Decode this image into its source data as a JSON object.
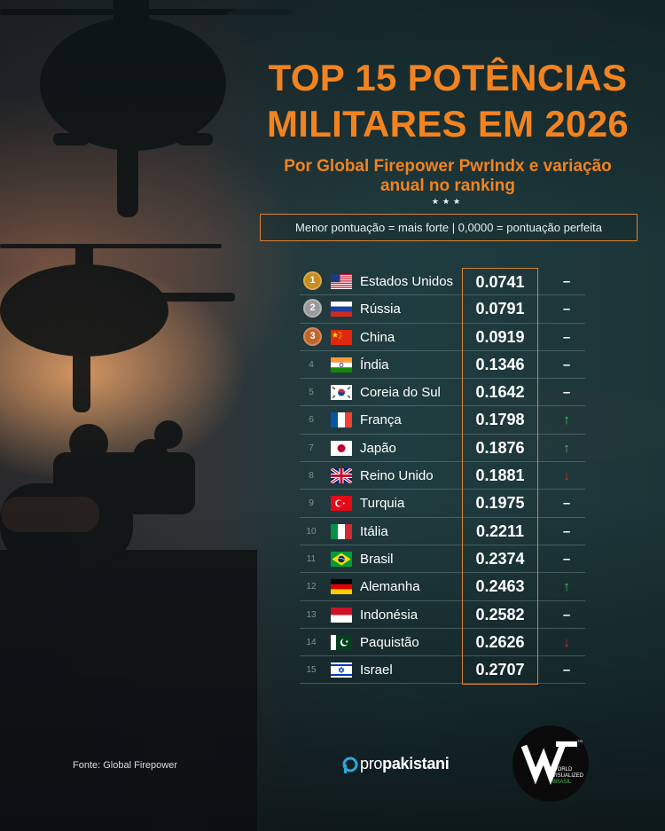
{
  "title": "TOP 15 POTÊNCIAS MILITARES EM 2026",
  "subtitle": "Por Global Firepower PwrIndx e variação anual no ranking",
  "stars": "★★★",
  "note": "Menor pontuação = mais forte | 0,0000 = pontuação perfeita",
  "colors": {
    "accent": "#f2831f",
    "up": "#4cc45b",
    "down": "#e0282a",
    "gold": "#c98c1f",
    "silver": "#9a9a9a",
    "bronze": "#c0652a"
  },
  "chart_data": {
    "type": "table",
    "columns": [
      "rank",
      "country",
      "score",
      "change"
    ],
    "rows": [
      {
        "rank": "1",
        "country": "Estados Unidos",
        "flag": "us-flag",
        "score": "0.0741",
        "change": "–",
        "trend": "same",
        "medal": "gold"
      },
      {
        "rank": "2",
        "country": "Rússia",
        "flag": "russia-flag",
        "score": "0.0791",
        "change": "–",
        "trend": "same",
        "medal": "silver"
      },
      {
        "rank": "3",
        "country": "China",
        "flag": "china-flag",
        "score": "0.0919",
        "change": "–",
        "trend": "same",
        "medal": "bronze"
      },
      {
        "rank": "4",
        "country": "Índia",
        "flag": "india-flag",
        "score": "0.1346",
        "change": "–",
        "trend": "same"
      },
      {
        "rank": "5",
        "country": "Coreia do Sul",
        "flag": "south-korea-flag",
        "score": "0.1642",
        "change": "–",
        "trend": "same"
      },
      {
        "rank": "6",
        "country": "França",
        "flag": "france-flag",
        "score": "0.1798",
        "change": "↑",
        "trend": "up"
      },
      {
        "rank": "7",
        "country": "Japão",
        "flag": "japan-flag",
        "score": "0.1876",
        "change": "↑",
        "trend": "up"
      },
      {
        "rank": "8",
        "country": "Reino Unido",
        "flag": "uk-flag",
        "score": "0.1881",
        "change": "↓",
        "trend": "down"
      },
      {
        "rank": "9",
        "country": "Turquia",
        "flag": "turkey-flag",
        "score": "0.1975",
        "change": "–",
        "trend": "same"
      },
      {
        "rank": "10",
        "country": "Itália",
        "flag": "italy-flag",
        "score": "0.2211",
        "change": "–",
        "trend": "same"
      },
      {
        "rank": "11",
        "country": "Brasil",
        "flag": "brazil-flag",
        "score": "0.2374",
        "change": "–",
        "trend": "same"
      },
      {
        "rank": "12",
        "country": "Alemanha",
        "flag": "germany-flag",
        "score": "0.2463",
        "change": "↑",
        "trend": "up"
      },
      {
        "rank": "13",
        "country": "Indonésia",
        "flag": "indonesia-flag",
        "score": "0.2582",
        "change": "–",
        "trend": "same"
      },
      {
        "rank": "14",
        "country": "Paquistão",
        "flag": "pakistan-flag",
        "score": "0.2626",
        "change": "↓",
        "trend": "down"
      },
      {
        "rank": "15",
        "country": "Israel",
        "flag": "israel-flag",
        "score": "0.2707",
        "change": "–",
        "trend": "same"
      }
    ]
  },
  "footer": {
    "source": "Fonte: Global Firepower",
    "brand_light": "pro",
    "brand_bold": "pakistani",
    "logo_lines": [
      "WORLD",
      "VISUALIZED",
      "BRASIL"
    ],
    "logo_mark": "TM"
  }
}
